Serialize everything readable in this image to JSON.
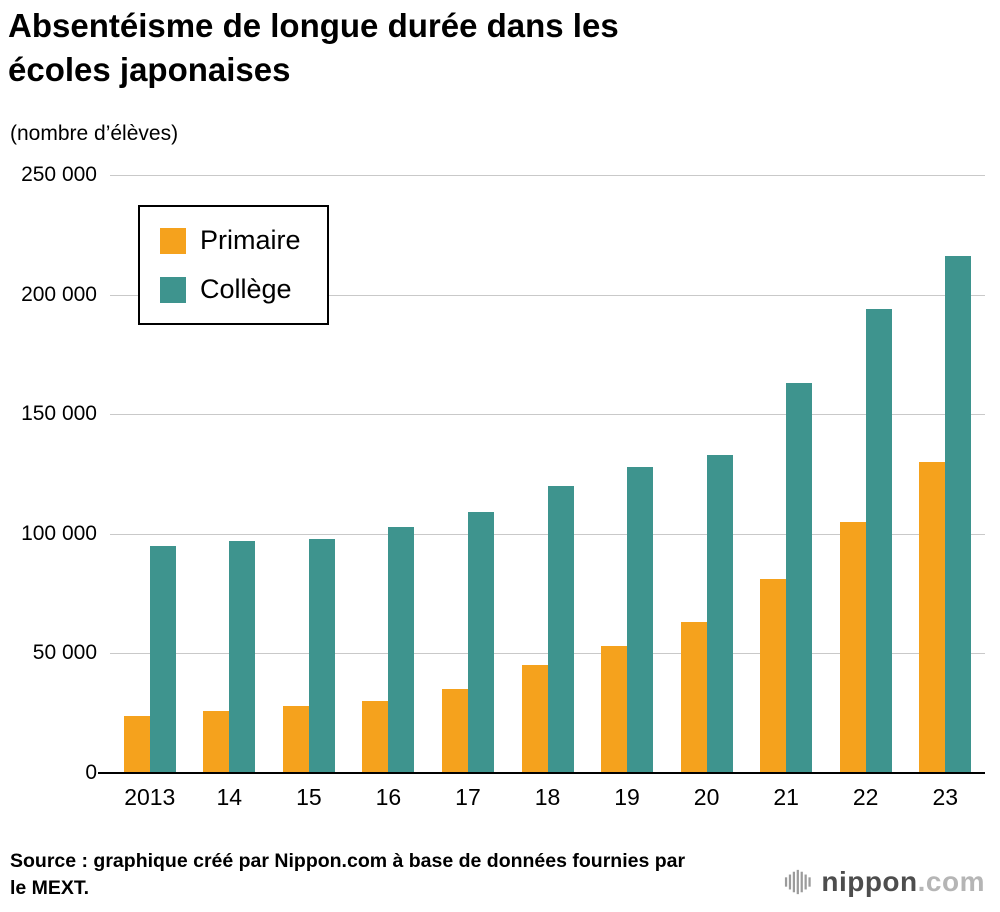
{
  "header": {
    "title_line1": "Absentéisme de longue durée dans les",
    "title_line2": "écoles japonaises",
    "subtitle": "(nombre d’élèves)"
  },
  "chart_data": {
    "type": "bar",
    "title": "Absentéisme de longue durée dans les écoles japonaises",
    "unit_label": "(nombre d’élèves)",
    "categories": [
      "2013",
      "14",
      "15",
      "16",
      "17",
      "18",
      "19",
      "20",
      "21",
      "22",
      "23"
    ],
    "series": [
      {
        "name": "Primaire",
        "color": "#F5A21D",
        "values": [
          24000,
          26000,
          28000,
          30000,
          35000,
          45000,
          53000,
          63000,
          81000,
          105000,
          130000
        ]
      },
      {
        "name": "Collège",
        "color": "#3E948E",
        "values": [
          95000,
          97000,
          98000,
          103000,
          109000,
          120000,
          128000,
          133000,
          163000,
          194000,
          216000
        ]
      }
    ],
    "ylim": [
      0,
      250000
    ],
    "yticks": [
      {
        "value": 250000,
        "label": "250 000"
      },
      {
        "value": 200000,
        "label": "200 000"
      },
      {
        "value": 150000,
        "label": "150 000"
      },
      {
        "value": 100000,
        "label": "100 000"
      },
      {
        "value": 50000,
        "label": "50 000"
      },
      {
        "value": 0,
        "label": "0"
      }
    ],
    "grid": true,
    "legend_position": "top-left"
  },
  "footer": {
    "source": "Source : graphique créé par Nippon.com à base de données fournies par le MEXT.",
    "logo_text": "nippon",
    "logo_suffix": ".com"
  }
}
